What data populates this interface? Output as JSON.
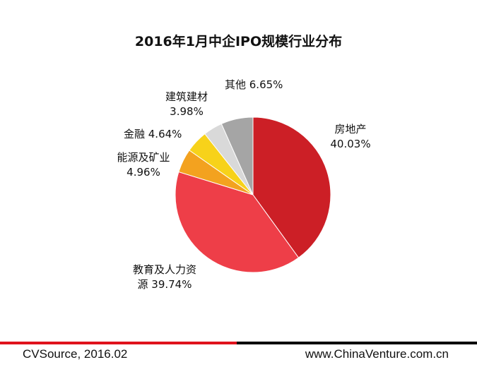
{
  "chart_data": {
    "type": "pie",
    "title": "2016年1月中企IPO规模行业分布",
    "slices": [
      {
        "name": "房地产",
        "value": 40.03,
        "label": "40.03%",
        "color": "#cc1f26"
      },
      {
        "name": "教育及人力资源",
        "value": 39.74,
        "label": "39.74%",
        "color": "#ee3e48"
      },
      {
        "name": "能源及矿业",
        "value": 4.96,
        "label": "4.96%",
        "color": "#f3a21f"
      },
      {
        "name": "金融",
        "value": 4.64,
        "label": "4.64%",
        "color": "#f7d21a"
      },
      {
        "name": "建筑建材",
        "value": 3.98,
        "label": "3.98%",
        "color": "#d9d9d9"
      },
      {
        "name": "其他",
        "value": 6.65,
        "label": "6.65%",
        "color": "#a5a5a5"
      }
    ]
  },
  "labels": {
    "real_estate_name": "房地产",
    "real_estate_pct": "40.03%",
    "education_line1": "教育及人力资",
    "education_line2": "源 39.74%",
    "energy_name": "能源及矿业",
    "energy_pct": "4.96%",
    "finance": "金融 4.64%",
    "construction_name": "建筑建材",
    "construction_pct": "3.98%",
    "other": "其他 6.65%"
  },
  "footer": {
    "source": "CVSource, 2016.02",
    "website": "www.ChinaVenture.com.cn"
  }
}
